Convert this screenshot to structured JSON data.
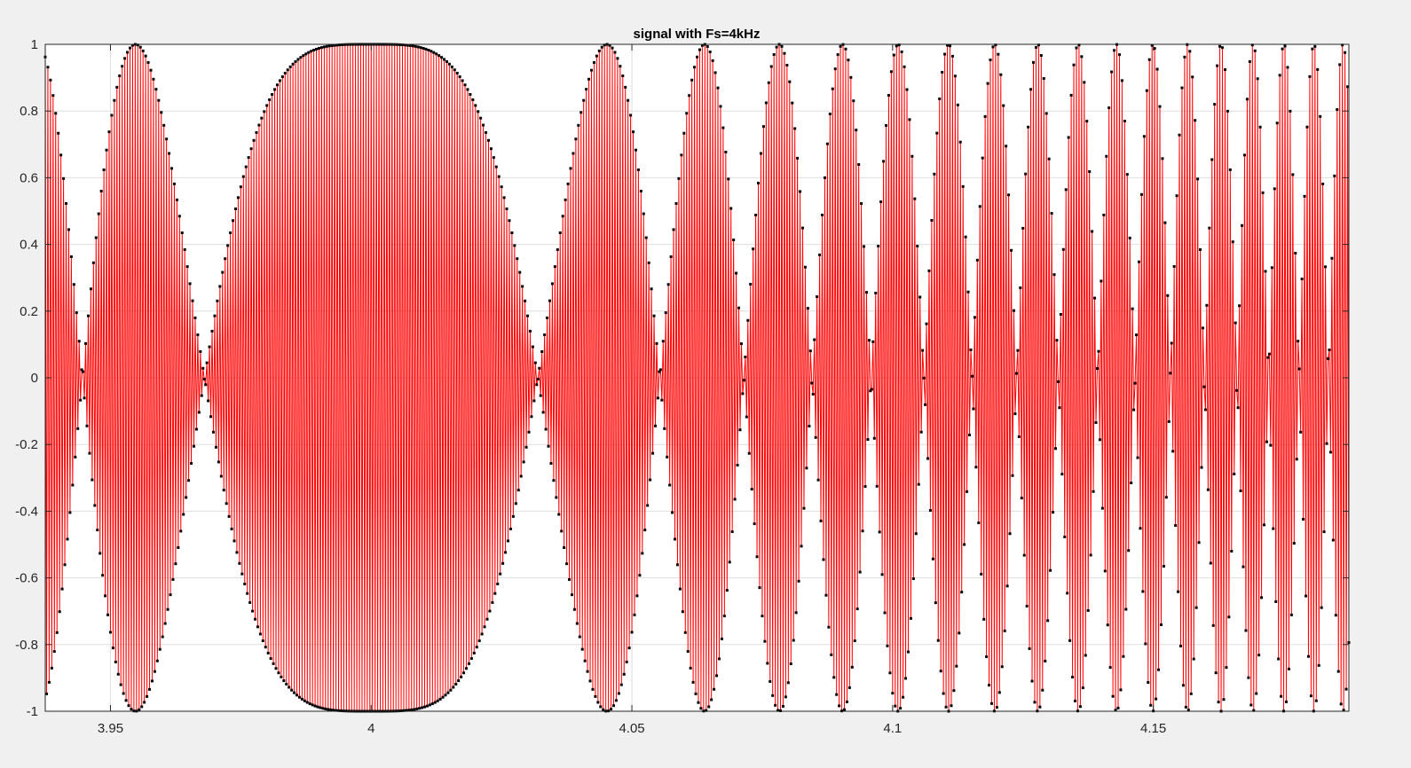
{
  "chart_data": {
    "type": "line",
    "title": "signal with Fs=4kHz",
    "xlabel": "",
    "ylabel": "",
    "xlim": [
      3.9375,
      4.1875
    ],
    "ylim": [
      -1,
      1
    ],
    "x_ticks": [
      "3.95",
      "4",
      "4.05",
      "4.1",
      "4.15"
    ],
    "y_ticks": [
      "1",
      "0.8",
      "0.6",
      "0.4",
      "0.2",
      "0",
      "-0.2",
      "-0.4",
      "-0.6",
      "-0.8",
      "-1"
    ],
    "grid": true,
    "sample_rate_hz": 4000,
    "signal_model": "chirp sampled at 4 kHz; sample envelope cos(2*pi*f_alias*(t-4)), alias frequency rising from about 0 Hz at t=4.00 to about 93 Hz at t=4.19",
    "series": [
      {
        "style": "red line connecting successive samples",
        "color": "#ff0000"
      },
      {
        "style": "black dot markers at each sample",
        "color": "#000000"
      }
    ]
  }
}
